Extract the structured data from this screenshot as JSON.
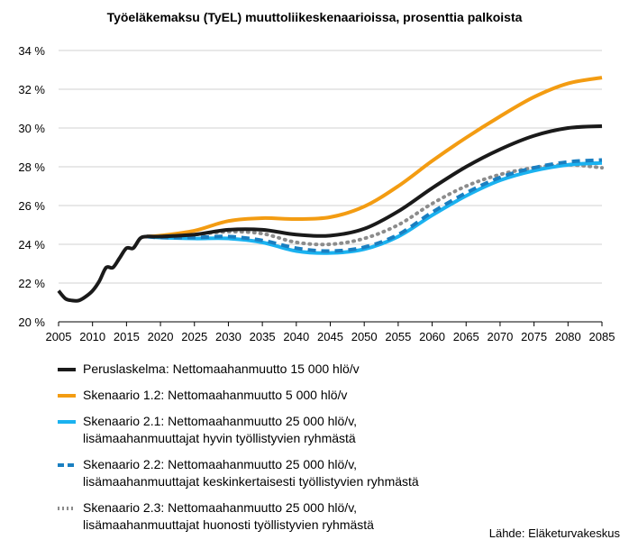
{
  "chart_data": {
    "type": "line",
    "title": "Työeläkemaksu (TyEL) muuttoliikeskenaarioissa, prosenttia palkoista",
    "y_tick_labels": [
      "34 %",
      "32 %",
      "30 %",
      "28 %",
      "26 %",
      "24 %",
      "22 %",
      "20 %"
    ],
    "x_tick_labels": [
      "2005",
      "2010",
      "2015",
      "2020",
      "2025",
      "2030",
      "2035",
      "2040",
      "2045",
      "2050",
      "2055",
      "2060",
      "2065",
      "2070",
      "2075",
      "2080",
      "2085"
    ],
    "xlim": [
      2005,
      2085
    ],
    "ylim": [
      20,
      34
    ],
    "grid": "horizontal",
    "legend_position": "bottom",
    "source": "Lähde: Eläketurvakeskus",
    "series": [
      {
        "name": "Peruslaskelma: Nettomaahanmuutto 15 000 hlö/v",
        "color": "#1a1a1a",
        "style": "solid",
        "x": [
          2005,
          2006,
          2007,
          2008,
          2009,
          2010,
          2011,
          2012,
          2013,
          2014,
          2015,
          2016,
          2017,
          2018,
          2020,
          2025,
          2030,
          2035,
          2040,
          2045,
          2050,
          2055,
          2060,
          2065,
          2070,
          2075,
          2080,
          2085
        ],
        "y": [
          21.6,
          21.2,
          21.1,
          21.1,
          21.3,
          21.6,
          22.1,
          22.8,
          22.8,
          23.3,
          23.8,
          23.8,
          24.3,
          24.4,
          24.4,
          24.5,
          24.75,
          24.75,
          24.5,
          24.45,
          24.8,
          25.7,
          26.9,
          28.0,
          28.9,
          29.6,
          30.0,
          30.1
        ]
      },
      {
        "name": "Skenaario 1.2: Nettomaahanmuutto 5 000 hlö/v",
        "color": "#f39c12",
        "style": "solid",
        "x": [
          2018,
          2020,
          2025,
          2030,
          2035,
          2040,
          2045,
          2050,
          2055,
          2060,
          2065,
          2070,
          2075,
          2080,
          2085
        ],
        "y": [
          24.4,
          24.45,
          24.7,
          25.2,
          25.35,
          25.3,
          25.4,
          25.95,
          27.0,
          28.3,
          29.5,
          30.6,
          31.6,
          32.3,
          32.6
        ]
      },
      {
        "name": "Skenaario 2.1: Nettomaahanmuutto 25 000 hlö/v, lisämaahanmuuttajat hyvin työllistyvien ryhmästä",
        "color": "#1ab2f0",
        "style": "solid",
        "x": [
          2018,
          2020,
          2025,
          2030,
          2035,
          2040,
          2045,
          2050,
          2055,
          2060,
          2065,
          2070,
          2075,
          2080,
          2085
        ],
        "y": [
          24.4,
          24.35,
          24.3,
          24.3,
          24.1,
          23.65,
          23.55,
          23.75,
          24.4,
          25.5,
          26.5,
          27.3,
          27.8,
          28.1,
          28.2
        ]
      },
      {
        "name": "Skenaario 2.2: Nettomaahanmuutto 25 000 hlö/v, lisämaahanmuuttajat keskinkertaisesti työllistyvien ryhmästä",
        "color": "#1a7fc1",
        "style": "dashed",
        "x": [
          2018,
          2020,
          2025,
          2030,
          2035,
          2040,
          2045,
          2050,
          2055,
          2060,
          2065,
          2070,
          2075,
          2080,
          2085
        ],
        "y": [
          24.4,
          24.35,
          24.35,
          24.4,
          24.2,
          23.8,
          23.65,
          23.85,
          24.5,
          25.65,
          26.65,
          27.45,
          27.95,
          28.25,
          28.35
        ]
      },
      {
        "name": "Skenaario 2.3: Nettomaahanmuutto 25 000 hlö/v, lisämaahanmuuttajat huonosti työllistyvien ryhmästä",
        "color": "#8c8c8c",
        "style": "dotted",
        "x": [
          2018,
          2020,
          2025,
          2030,
          2035,
          2040,
          2045,
          2050,
          2055,
          2060,
          2065,
          2070,
          2075,
          2080,
          2085
        ],
        "y": [
          24.4,
          24.4,
          24.5,
          24.65,
          24.55,
          24.1,
          24.0,
          24.3,
          25.0,
          26.1,
          27.0,
          27.6,
          27.95,
          28.1,
          27.95
        ]
      }
    ],
    "legend": [
      {
        "line1": "Peruslaskelma: Nettomaahanmuutto 15 000 hlö/v",
        "line2": ""
      },
      {
        "line1": "Skenaario 1.2: Nettomaahanmuutto 5 000 hlö/v",
        "line2": ""
      },
      {
        "line1": "Skenaario 2.1: Nettomaahanmuutto 25 000 hlö/v,",
        "line2": "lisämaahanmuuttajat hyvin työllistyvien ryhmästä"
      },
      {
        "line1": "Skenaario 2.2: Nettomaahanmuutto 25 000 hlö/v,",
        "line2": "lisämaahanmuuttajat keskinkertaisesti työllistyvien ryhmästä"
      },
      {
        "line1": "Skenaario 2.3: Nettomaahanmuutto 25 000 hlö/v,",
        "line2": "lisämaahanmuuttajat huonosti työllistyvien ryhmästä"
      }
    ]
  }
}
